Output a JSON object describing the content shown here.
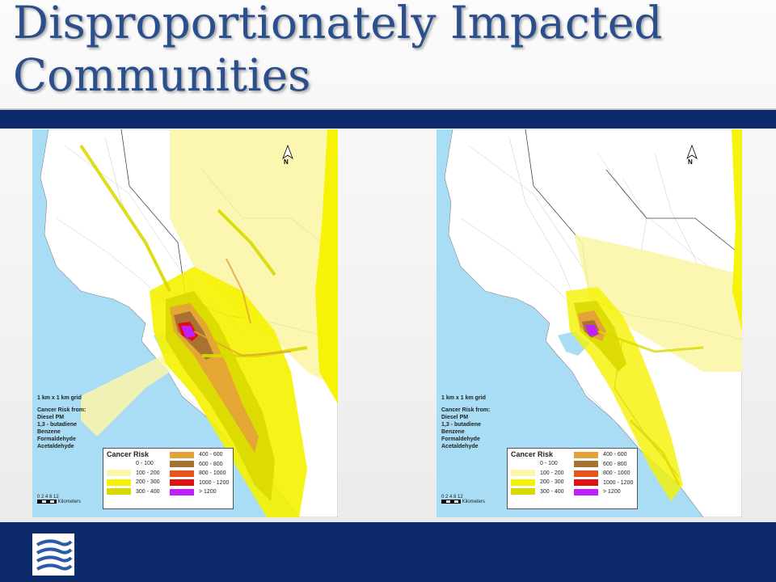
{
  "title": {
    "line1": "Disproportionately Impacted",
    "line2": "Communities"
  },
  "colors": {
    "title": "#2b4f8c",
    "bar": "#0d2a6b",
    "water": "#a9ddf5",
    "land": "#ffffff"
  },
  "maps": [
    {
      "north_label": "N",
      "grid_label": "1 km x 1 km grid",
      "source_heading": "Cancer Risk from:",
      "sources": [
        "Diesel PM",
        "1,3 - butadiene",
        "Benzene",
        "Formaldehyde",
        "Acetaldehyde"
      ],
      "legend_title": "Cancer Risk",
      "legend": [
        {
          "label": "0 - 100",
          "color": "#ffffff"
        },
        {
          "label": "100 - 200",
          "color": "#fbf6a8"
        },
        {
          "label": "200 - 300",
          "color": "#f5f200"
        },
        {
          "label": "300 - 400",
          "color": "#d9d900"
        },
        {
          "label": "400 - 600",
          "color": "#e6a13a"
        },
        {
          "label": "600 - 800",
          "color": "#a87332"
        },
        {
          "label": "800 - 1000",
          "color": "#e5551b"
        },
        {
          "label": "1000 - 1200",
          "color": "#e01010"
        },
        {
          "label": "> 1200",
          "color": "#c020ff"
        }
      ],
      "scale_numbers": "0 2 4     8     12",
      "scale_unit": "Kilometers"
    },
    {
      "north_label": "N",
      "grid_label": "1 km x 1 km grid",
      "source_heading": "Cancer Risk from:",
      "sources": [
        "Diesel PM",
        "1,3 - butadiene",
        "Benzene",
        "Formaldehyde",
        "Acetaldehyde"
      ],
      "legend_title": "Cancer Risk",
      "legend": [
        {
          "label": "0 - 100",
          "color": "#ffffff"
        },
        {
          "label": "100 - 200",
          "color": "#fbf6a8"
        },
        {
          "label": "200 - 300",
          "color": "#f5f200"
        },
        {
          "label": "300 - 400",
          "color": "#d9d900"
        },
        {
          "label": "400 - 600",
          "color": "#e6a13a"
        },
        {
          "label": "600 - 800",
          "color": "#a87332"
        },
        {
          "label": "800 - 1000",
          "color": "#e5551b"
        },
        {
          "label": "1000 - 1200",
          "color": "#e01010"
        },
        {
          "label": "> 1200",
          "color": "#c020ff"
        }
      ],
      "scale_numbers": "0 2 4     8     12",
      "scale_unit": "Kilometers"
    }
  ]
}
